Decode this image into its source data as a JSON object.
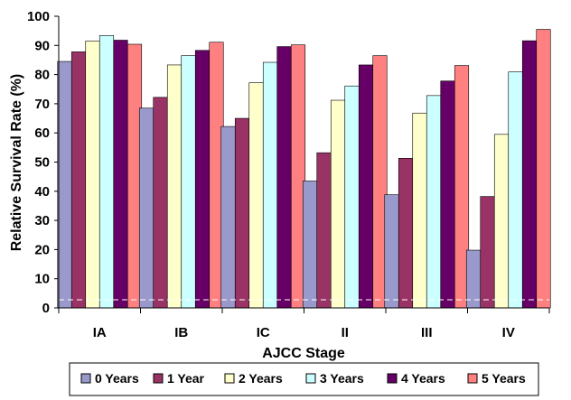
{
  "chart_data": {
    "type": "bar",
    "xlabel": "AJCC Stage",
    "ylabel": "Relative Survival Rate (%)",
    "ylim": [
      0,
      100
    ],
    "yticks": [
      "0",
      "10",
      "20",
      "30",
      "40",
      "50",
      "60",
      "70",
      "80",
      "90",
      "100"
    ],
    "categories": [
      "IA",
      "IB",
      "IC",
      "II",
      "III",
      "IV"
    ],
    "series": [
      {
        "name": "0 Years",
        "color": "#9999cc",
        "values": [
          84.5,
          68.5,
          62.2,
          43.5,
          38.8,
          19.8
        ]
      },
      {
        "name": "1 Year",
        "color": "#993366",
        "values": [
          87.8,
          72.2,
          65.0,
          53.2,
          51.3,
          38.2
        ]
      },
      {
        "name": "2 Years",
        "color": "#ffffcc",
        "values": [
          91.5,
          83.3,
          77.2,
          71.2,
          66.8,
          59.5
        ]
      },
      {
        "name": "3 Years",
        "color": "#ccffff",
        "values": [
          93.4,
          86.5,
          84.2,
          76.1,
          72.8,
          80.9
        ]
      },
      {
        "name": "4 Years",
        "color": "#660066",
        "values": [
          91.8,
          88.3,
          89.6,
          83.3,
          77.8,
          91.6
        ]
      },
      {
        "name": "5 Years",
        "color": "#ff8080",
        "values": [
          90.4,
          91.1,
          90.2,
          86.5,
          83.1,
          95.5
        ]
      }
    ],
    "grid": false,
    "legend_position": "bottom"
  }
}
